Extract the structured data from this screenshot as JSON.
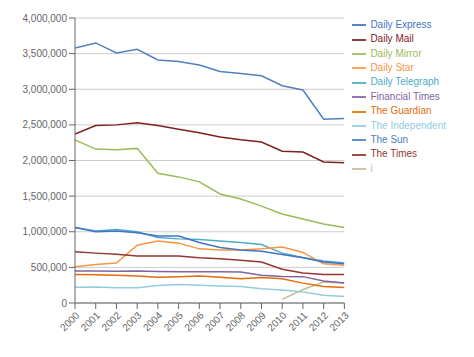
{
  "chart_data": {
    "type": "line",
    "x": [
      2000,
      2001,
      2002,
      2003,
      2004,
      2005,
      2006,
      2007,
      2008,
      2009,
      2010,
      2011,
      2012,
      2013
    ],
    "series": [
      {
        "name": "The Sun",
        "color": "#4F81BD",
        "values": [
          3580000,
          3650000,
          3510000,
          3560000,
          3410000,
          3390000,
          3340000,
          3250000,
          3220000,
          3190000,
          3050000,
          2990000,
          2580000,
          2590000
        ]
      },
      {
        "name": "Daily Mail",
        "color": "#7F2020",
        "values": [
          2370000,
          2490000,
          2500000,
          2530000,
          2490000,
          2440000,
          2390000,
          2330000,
          2290000,
          2260000,
          2130000,
          2120000,
          1980000,
          1970000
        ]
      },
      {
        "name": "Daily Mirror",
        "color": "#9BBB59",
        "values": [
          2290000,
          2160000,
          2150000,
          2170000,
          1820000,
          1770000,
          1700000,
          1530000,
          1460000,
          1360000,
          1250000,
          1180000,
          1110000,
          1060000
        ]
      },
      {
        "name": "Daily Telegraph",
        "color": "#4BACC6",
        "values": [
          1060000,
          1010000,
          1030000,
          1000000,
          920000,
          900000,
          890000,
          870000,
          850000,
          820000,
          700000,
          640000,
          590000,
          560000
        ]
      },
      {
        "name": "Daily Star",
        "color": "#F79646",
        "values": [
          510000,
          540000,
          560000,
          810000,
          870000,
          840000,
          760000,
          745000,
          745000,
          760000,
          785000,
          710000,
          550000,
          530000
        ]
      },
      {
        "name": "Daily Express",
        "color": "#4472C4",
        "values": [
          1060000,
          1000000,
          1010000,
          985000,
          940000,
          940000,
          850000,
          780000,
          745000,
          725000,
          680000,
          635000,
          575000,
          550000
        ]
      },
      {
        "name": "The Times",
        "color": "#943634",
        "values": [
          720000,
          700000,
          685000,
          660000,
          660000,
          660000,
          635000,
          620000,
          600000,
          575000,
          475000,
          420000,
          400000,
          400000
        ]
      },
      {
        "name": "i",
        "color": "#C4BD97",
        "values": [
          null,
          null,
          null,
          null,
          null,
          null,
          null,
          null,
          null,
          null,
          50000,
          190000,
          295000,
          280000
        ]
      },
      {
        "name": "Financial Times",
        "color": "#8064A2",
        "values": [
          450000,
          448000,
          447000,
          448000,
          442000,
          440000,
          438000,
          437000,
          436000,
          390000,
          373000,
          370000,
          310000,
          282000
        ]
      },
      {
        "name": "The Guardian",
        "color": "#E46C0A",
        "values": [
          400000,
          398000,
          390000,
          380000,
          360000,
          368000,
          378000,
          360000,
          340000,
          358000,
          340000,
          279000,
          230000,
          218000
        ]
      },
      {
        "name": "The Independent",
        "color": "#92CDDC",
        "values": [
          220000,
          225000,
          215000,
          215000,
          245000,
          258000,
          250000,
          240000,
          230000,
          200000,
          182000,
          155000,
          110000,
          90000
        ]
      }
    ],
    "xlim": [
      2000,
      2013
    ],
    "xticks": [
      2000,
      2001,
      2002,
      2003,
      2004,
      2005,
      2006,
      2007,
      2008,
      2009,
      2010,
      2011,
      2012,
      2013
    ],
    "ylim": [
      0,
      4000000
    ],
    "yticks": [
      0,
      {
        "value": 500000,
        "label": "500,000"
      },
      {
        "value": 1000000,
        "label": "1,000,000"
      },
      {
        "value": 1500000,
        "label": "1,500,000"
      },
      {
        "value": 2000000,
        "label": "2,000,000"
      },
      {
        "value": 2500000,
        "label": "2,500,000"
      },
      {
        "value": 3000000,
        "label": "3,000,000"
      },
      {
        "value": 3500000,
        "label": "3,500,000"
      },
      {
        "value": 4000000,
        "label": "4,000,000"
      }
    ],
    "grid": true,
    "legend": "right"
  }
}
